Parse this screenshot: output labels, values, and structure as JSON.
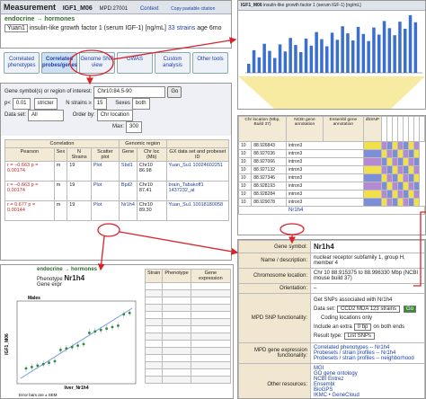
{
  "measurement": {
    "title": "Measurement",
    "id": "IGF1_M06",
    "mpd": "MPD:27001",
    "context": "Context",
    "citation": "Copy pastable citation",
    "category": "endocrine → hormones",
    "study": "Yuan1",
    "description": "insulin-like growth factor 1 (serum IGF-1)",
    "unit": "[ng/mL]",
    "strains": "33 strains",
    "age": "age 6mo"
  },
  "tabs": [
    "Correlated phenotypes",
    "Correlated probes/genes",
    "Genome SNP view",
    "GWAS",
    "Custom analysis",
    "Other tools"
  ],
  "search": {
    "label": "Gene symbol(s) or region of interest:",
    "query": "Chr10:84.5-90",
    "go": "Go",
    "p_label": "p<",
    "p_value": "0.01",
    "strictness": "stricter",
    "n_label": "N strains ≥",
    "n_value": "15",
    "sex_label": "Sexes",
    "sex_value": "both",
    "dataset_label": "Data set:",
    "dataset_value": "All",
    "order_label": "Order by:",
    "order_value": "Chr location",
    "max_label": "Max:",
    "max_value": "300"
  },
  "correlations": {
    "group_correlation": "Correlation",
    "group_genomic": "Genomic region",
    "headers": [
      "Pearson",
      "Sex",
      "N Strains",
      "Scatter plot",
      "Gene",
      "Chr loc (Mb)",
      "GX data set and probeset ID"
    ],
    "rows": [
      [
        "r = −0.663  p = 0.00174",
        "m",
        "19",
        "Plot",
        "Sbd1",
        "Chr10 86.98",
        "Yuan_Su1  10024602251"
      ],
      [
        "r = −0.663  p = 0.00174",
        "m",
        "19",
        "Plot",
        "Bpil2",
        "Chr10 87.41",
        "brain_Tabakoff1  1437232_at"
      ],
      [
        "r = 0.677  p = 0.00144",
        "m",
        "19",
        "Plot",
        "Nr1h4",
        "Chr10 89.30",
        "Yuan_Su1  10018180058"
      ]
    ]
  },
  "barchart": {
    "title": "IGF1_M06",
    "subtitle": "insulin-like growth factor 1 (serum IGF-1) [ng/mL]"
  },
  "snp_table": {
    "headers": [
      "Chr location (Mbp, Build 37)",
      "NCBI gene annotation",
      "Ensembl gene annotation",
      "dbSNP"
    ],
    "rows": [
      [
        "10",
        "88.926843",
        "intron3"
      ],
      [
        "10",
        "88.927036",
        "intron3"
      ],
      [
        "10",
        "88.927066",
        "intron3"
      ],
      [
        "10",
        "88.927132",
        "intron3"
      ],
      [
        "10",
        "88.927346",
        "intron3"
      ],
      [
        "10",
        "88.928193",
        "intron3"
      ],
      [
        "10",
        "88.928284",
        "intron3"
      ],
      [
        "10",
        "88.929078",
        "intron3"
      ]
    ],
    "gene": "Nr1h4"
  },
  "scatter": {
    "category": "endocrine → hormones",
    "phenotype_label": "Phenotype",
    "gene": "Nr1h4",
    "expr_label": "Gene expr",
    "sex": "Males",
    "y_label": "IGF1_M06",
    "x_label": "liver_Nr1h4",
    "footer": "Error bars are ± SEM",
    "strain_header": "Strain",
    "pheno_header": "Phenotype",
    "expr_header": "Gene expression"
  },
  "gene_info": {
    "rows": [
      {
        "key": "Gene symbol:",
        "value": "Nr1h4"
      },
      {
        "key": "Name / description:",
        "value": "nuclear receptor subfamily 1, group H, member 4"
      },
      {
        "key": "Chromosome location:",
        "value": "Chr 10  88.915375 to 88.996330 Mbp (NCBI mouse build 37)"
      },
      {
        "key": "Orientation:",
        "value": "–"
      }
    ],
    "snp_key": "MPD SNP functionality:",
    "snp_title": "Get SNPs associated with Nr1h4",
    "snp_dataset_label": "Data set:",
    "snp_dataset": "CCD2 MDA 123 strains",
    "snp_coding": "Coding locations only",
    "snp_extra_label": "Include an extra",
    "snp_extra": "0 bp",
    "snp_extra_end": "on both ends",
    "snp_result_label": "Result type:",
    "snp_result": "List SNPs",
    "snp_go": "Go",
    "expr_key": "MPD gene expression functionality:",
    "expr_links": [
      "Correlated phenotypes -- Nr1h4",
      "Probesets / strain profiles -- Nr1h4",
      "Probesets / strain profiles -- neighborhood"
    ],
    "other_key": "Other resources:",
    "other_links": [
      "MGI",
      "GO gene ontology",
      "NCBI Entrez",
      "Ensembl",
      "BioGPS",
      "IKMC • GeneCloud",
      "Find associated mouse strains (MSR)"
    ]
  }
}
